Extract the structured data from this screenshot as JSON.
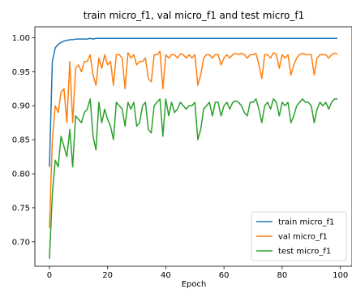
{
  "chart_data": {
    "type": "line",
    "title": "train micro_f1, val micro_f1 and test micro_f1",
    "xlabel": "Epoch",
    "ylabel": "",
    "xlim": [
      -5,
      104
    ],
    "ylim": [
      0.664,
      1.016
    ],
    "xticks": [
      0,
      20,
      40,
      60,
      80,
      100
    ],
    "yticks": [
      0.7,
      0.75,
      0.8,
      0.85,
      0.9,
      0.95,
      1.0
    ],
    "grid": false,
    "legend_position": "lower-right",
    "x": [
      0,
      1,
      2,
      3,
      4,
      5,
      6,
      7,
      8,
      9,
      10,
      11,
      12,
      13,
      14,
      15,
      16,
      17,
      18,
      19,
      20,
      21,
      22,
      23,
      24,
      25,
      26,
      27,
      28,
      29,
      30,
      31,
      32,
      33,
      34,
      35,
      36,
      37,
      38,
      39,
      40,
      41,
      42,
      43,
      44,
      45,
      46,
      47,
      48,
      49,
      50,
      51,
      52,
      53,
      54,
      55,
      56,
      57,
      58,
      59,
      60,
      61,
      62,
      63,
      64,
      65,
      66,
      67,
      68,
      69,
      70,
      71,
      72,
      73,
      74,
      75,
      76,
      77,
      78,
      79,
      80,
      81,
      82,
      83,
      84,
      85,
      86,
      87,
      88,
      89,
      90,
      91,
      92,
      93,
      94,
      95,
      96,
      97,
      98,
      99
    ],
    "series": [
      {
        "name": "train micro_f1",
        "color": "#1f77b4",
        "values": [
          0.81,
          0.965,
          0.985,
          0.99,
          0.993,
          0.995,
          0.996,
          0.997,
          0.997,
          0.998,
          0.998,
          0.998,
          0.998,
          0.998,
          0.999,
          0.998,
          0.999,
          0.999,
          0.999,
          0.999,
          0.999,
          0.999,
          0.999,
          0.999,
          0.999,
          0.999,
          0.999,
          0.999,
          0.999,
          0.999,
          0.999,
          0.999,
          0.999,
          0.999,
          0.999,
          0.999,
          0.999,
          0.999,
          0.999,
          0.999,
          0.999,
          0.999,
          0.999,
          0.999,
          0.999,
          0.999,
          0.999,
          0.999,
          0.999,
          0.999,
          0.999,
          0.999,
          0.999,
          0.999,
          0.999,
          0.999,
          0.999,
          0.999,
          0.999,
          0.999,
          0.999,
          0.999,
          0.999,
          0.999,
          0.999,
          0.999,
          0.999,
          0.999,
          0.999,
          0.999,
          0.999,
          0.999,
          0.999,
          0.999,
          0.999,
          0.999,
          0.999,
          0.999,
          0.999,
          0.999,
          0.999,
          0.999,
          0.999,
          0.999,
          0.999,
          0.999,
          0.999,
          0.999,
          0.999,
          0.999,
          0.999,
          0.999,
          0.999,
          0.999,
          0.999,
          0.999,
          0.999,
          0.999,
          0.999,
          0.999
        ]
      },
      {
        "name": "val micro_f1",
        "color": "#ff7f0e",
        "values": [
          0.72,
          0.85,
          0.9,
          0.89,
          0.92,
          0.925,
          0.875,
          0.965,
          0.875,
          0.955,
          0.96,
          0.95,
          0.965,
          0.965,
          0.975,
          0.945,
          0.93,
          0.97,
          0.955,
          0.975,
          0.96,
          0.965,
          0.93,
          0.975,
          0.975,
          0.97,
          0.925,
          0.978,
          0.97,
          0.975,
          0.96,
          0.965,
          0.965,
          0.97,
          0.94,
          0.935,
          0.975,
          0.975,
          0.98,
          0.925,
          0.975,
          0.97,
          0.975,
          0.975,
          0.97,
          0.976,
          0.975,
          0.97,
          0.975,
          0.97,
          0.975,
          0.93,
          0.945,
          0.97,
          0.975,
          0.975,
          0.97,
          0.975,
          0.975,
          0.96,
          0.97,
          0.975,
          0.97,
          0.975,
          0.977,
          0.975,
          0.977,
          0.975,
          0.97,
          0.975,
          0.975,
          0.977,
          0.96,
          0.94,
          0.975,
          0.975,
          0.97,
          0.978,
          0.975,
          0.955,
          0.975,
          0.97,
          0.975,
          0.945,
          0.96,
          0.97,
          0.975,
          0.977,
          0.975,
          0.975,
          0.975,
          0.945,
          0.97,
          0.975,
          0.975,
          0.975,
          0.97,
          0.975,
          0.977,
          0.976
        ]
      },
      {
        "name": "test micro_f1",
        "color": "#2ca02c",
        "values": [
          0.675,
          0.77,
          0.82,
          0.81,
          0.855,
          0.84,
          0.825,
          0.865,
          0.81,
          0.885,
          0.88,
          0.875,
          0.89,
          0.895,
          0.91,
          0.855,
          0.835,
          0.905,
          0.875,
          0.895,
          0.88,
          0.87,
          0.85,
          0.905,
          0.9,
          0.895,
          0.87,
          0.905,
          0.895,
          0.905,
          0.87,
          0.875,
          0.9,
          0.905,
          0.865,
          0.86,
          0.9,
          0.905,
          0.91,
          0.855,
          0.91,
          0.885,
          0.905,
          0.89,
          0.895,
          0.905,
          0.9,
          0.895,
          0.9,
          0.9,
          0.905,
          0.85,
          0.865,
          0.895,
          0.9,
          0.905,
          0.885,
          0.905,
          0.905,
          0.885,
          0.9,
          0.905,
          0.895,
          0.905,
          0.907,
          0.905,
          0.9,
          0.89,
          0.885,
          0.905,
          0.905,
          0.91,
          0.895,
          0.875,
          0.9,
          0.905,
          0.895,
          0.91,
          0.905,
          0.885,
          0.905,
          0.9,
          0.905,
          0.875,
          0.885,
          0.9,
          0.905,
          0.91,
          0.905,
          0.905,
          0.9,
          0.875,
          0.895,
          0.905,
          0.9,
          0.905,
          0.895,
          0.905,
          0.91,
          0.91
        ]
      }
    ]
  }
}
